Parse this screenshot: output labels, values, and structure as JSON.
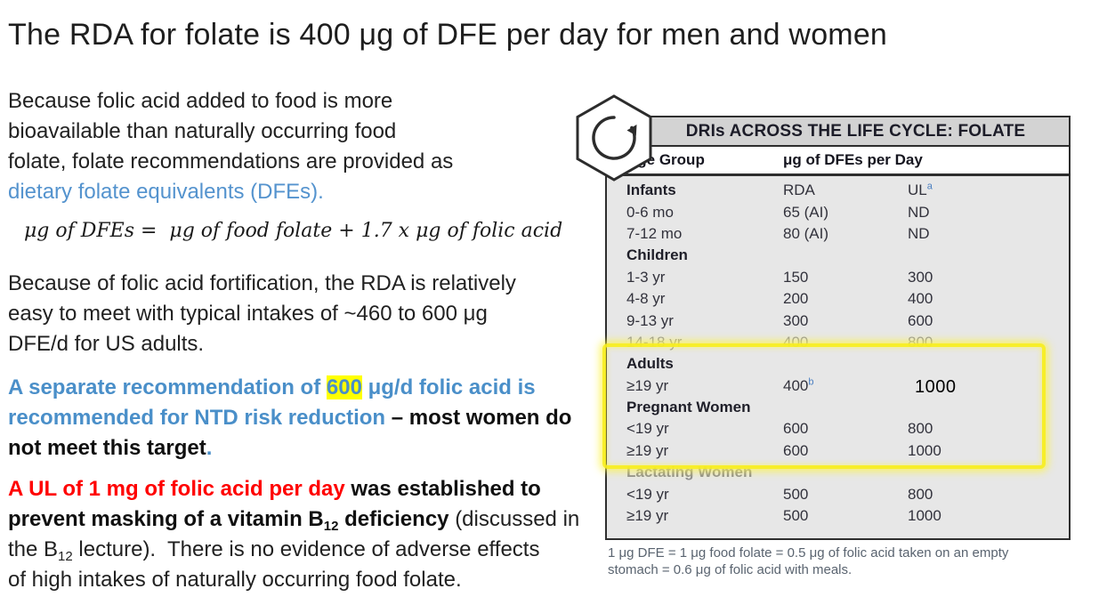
{
  "title": "The RDA for folate is 400 μg of DFE per day for men and women",
  "left": {
    "para1": {
      "l1": "Because folic acid added to food is more",
      "l2": "bioavailable than naturally occurring food",
      "l3": "folate, folate recommendations are provided as",
      "l4": "dietary folate equivalents (DFEs)."
    },
    "formula": "μg of DFEs =  μg of food folate + 1.7 x μg of folic acid",
    "para2": {
      "l1": "Because of folic acid fortification, the RDA is relatively",
      "l2": "easy to meet with typical intakes of ~460 to 600 μg",
      "l3": "DFE/d for US adults."
    },
    "para3": {
      "s1": "A separate recommendation of ",
      "s2": "600",
      "s3": " μg/d folic acid is",
      "s4": "recommended for NTD risk reduction ",
      "s5": "– most women do",
      "s6": "not meet this target",
      "s7": "."
    },
    "para4": {
      "s1": "A UL of 1 mg of folic acid per day ",
      "s2": "was established to",
      "s3": "prevent masking of a vitamin B",
      "s4": "12",
      "s5": " deficiency ",
      "s6": "(discussed in",
      "s7": "the B",
      "s8": "12",
      "s9": " lecture).  There is no evidence of adverse effects",
      "s10": "of high intakes of naturally occurring food folate."
    }
  },
  "table": {
    "title": "DRIs ACROSS THE LIFE CYCLE: FOLATE",
    "col_age": "Age Group",
    "col_ug": "μg of DFEs per Day",
    "rows": [
      {
        "label": "Infants",
        "bold": true,
        "rda": "RDA",
        "ul": "UL",
        "ulSup": "a"
      },
      {
        "label": "0-6 mo",
        "rda": "65 (AI)",
        "ul": "ND"
      },
      {
        "label": "7-12 mo",
        "rda": "80 (AI)",
        "ul": "ND"
      },
      {
        "label": "Children",
        "bold": true,
        "rda": "",
        "ul": ""
      },
      {
        "label": "1-3 yr",
        "rda": "150",
        "ul": "300"
      },
      {
        "label": "4-8 yr",
        "rda": "200",
        "ul": "400"
      },
      {
        "label": "9-13 yr",
        "rda": "300",
        "ul": "600"
      },
      {
        "label": "14-18 yr",
        "rda": "400",
        "ul": "800",
        "faded": true
      },
      {
        "label": "Adults",
        "bold": true,
        "rda": "",
        "ul": ""
      },
      {
        "label": "≥19 yr",
        "rda": "400",
        "rdaSup": "b",
        "ul": "1000",
        "ulTyped": true
      },
      {
        "label": "Pregnant Women",
        "bold": true,
        "rda": "",
        "ul": ""
      },
      {
        "label": "<19 yr",
        "rda": "600",
        "ul": "800"
      },
      {
        "label": "≥19 yr",
        "rda": "600",
        "ul": "1000"
      },
      {
        "label": "Lactating Women",
        "bold": true,
        "rda": "",
        "ul": "",
        "faded": true
      },
      {
        "label": "<19 yr",
        "rda": "500",
        "ul": "800"
      },
      {
        "label": "≥19 yr",
        "rda": "500",
        "ul": "1000"
      }
    ]
  },
  "footnote": {
    "l1": "1 μg DFE = 1 μg food folate = 0.5 μg of folic acid taken on an empty",
    "l2": "stomach = 0.6 μg of folic acid with meals."
  },
  "colors": {
    "accent_blue": "#5493CE",
    "ntd_blue": "#4A8FC9",
    "warning_red": "#FF0000",
    "text_highlight_yellow": "#FFFF00",
    "callout_yellow": "#F8EE20",
    "table_title_bg": "#D3D3D3",
    "table_body_bg": "#E7E7E7",
    "sup_blue": "#4A7FC1"
  }
}
